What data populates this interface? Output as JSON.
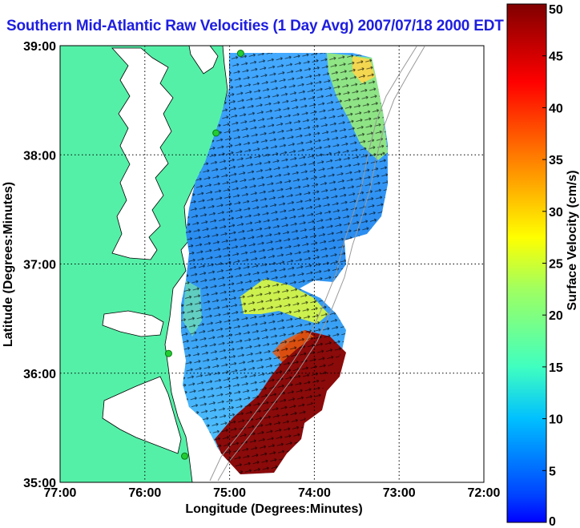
{
  "chart_data": {
    "type": "heatmap",
    "title": "Southern Mid-Atlantic Raw Velocities (1 Day Avg) 2007/07/18 2000 EDT",
    "xlabel": "Longitude (Degrees:Minutes)",
    "ylabel": "Latitude (Degrees:Minutes)",
    "colorbar_label": "Surface Velocity (cm/s)",
    "x_ticks": [
      "77:00",
      "76:00",
      "75:00",
      "74:00",
      "73:00",
      "72:00"
    ],
    "x_tick_values": [
      -77,
      -76,
      -75,
      -74,
      -73,
      -72
    ],
    "y_ticks": [
      "39:00",
      "38:00",
      "37:00",
      "36:00",
      "35:00"
    ],
    "y_tick_values": [
      39,
      38,
      37,
      36,
      35
    ],
    "xlim": [
      -77,
      -72
    ],
    "ylim": [
      35,
      39
    ],
    "colorbar_ticks": [
      "0",
      "5",
      "10",
      "15",
      "20",
      "25",
      "30",
      "35",
      "40",
      "45",
      "50"
    ],
    "colorbar_range": [
      0,
      50
    ],
    "grid": true,
    "colors": {
      "land": "#55f0a8",
      "title": "#1e1ee0",
      "coast": "#000000",
      "sites": "#22cc33"
    },
    "site_markers": [
      {
        "lon": -74.87,
        "lat": 38.93
      },
      {
        "lon": -75.16,
        "lat": 38.2
      },
      {
        "lon": -75.72,
        "lat": 36.18
      },
      {
        "lon": -75.53,
        "lat": 35.24
      }
    ]
  }
}
